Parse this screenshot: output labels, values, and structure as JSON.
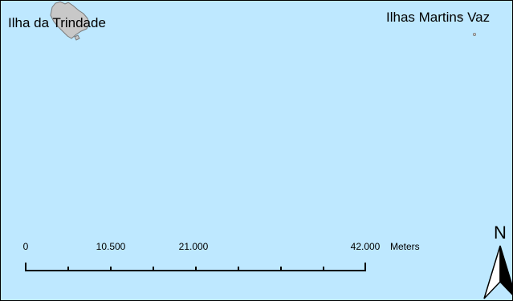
{
  "map": {
    "ocean_color": "#bee8ff",
    "island_fill": "#c8c8c8",
    "island_stroke": "#7a7a7a",
    "labels": {
      "trindade": "Ilha da Trindade",
      "martin_vaz": "Ilhas Martins Vaz"
    }
  },
  "scale_bar": {
    "ticks": [
      "0",
      "10.500",
      "21.000",
      "42.000"
    ],
    "unit": "Meters"
  },
  "north_arrow": {
    "label": "N"
  }
}
